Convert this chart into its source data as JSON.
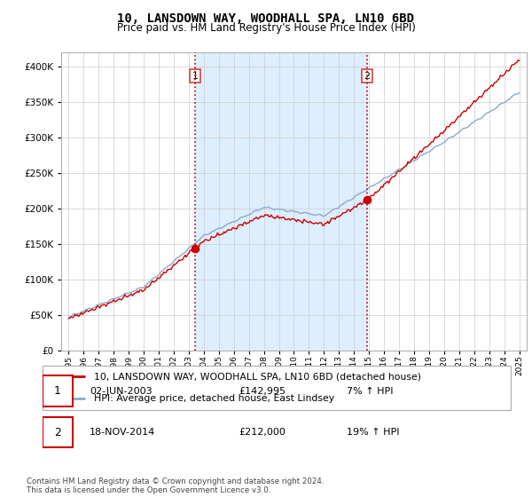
{
  "title": "10, LANSDOWN WAY, WOODHALL SPA, LN10 6BD",
  "subtitle": "Price paid vs. HM Land Registry's House Price Index (HPI)",
  "legend_line1": "10, LANSDOWN WAY, WOODHALL SPA, LN10 6BD (detached house)",
  "legend_line2": "HPI: Average price, detached house, East Lindsey",
  "transaction1_date": "02-JUN-2003",
  "transaction1_price": "£142,995",
  "transaction1_hpi": "7% ↑ HPI",
  "transaction2_date": "18-NOV-2014",
  "transaction2_price": "£212,000",
  "transaction2_hpi": "19% ↑ HPI",
  "footer": "Contains HM Land Registry data © Crown copyright and database right 2024.\nThis data is licensed under the Open Government Licence v3.0.",
  "red_color": "#cc0000",
  "blue_color": "#88aacc",
  "shade_color": "#ddeeff",
  "marker1_year": 2003.42,
  "marker1_value": 142995,
  "marker2_year": 2014.88,
  "marker2_value": 212000,
  "ylim": [
    0,
    420000
  ],
  "yticks": [
    0,
    50000,
    100000,
    150000,
    200000,
    250000,
    300000,
    350000,
    400000
  ],
  "background_color": "#ffffff",
  "grid_color": "#cccccc"
}
